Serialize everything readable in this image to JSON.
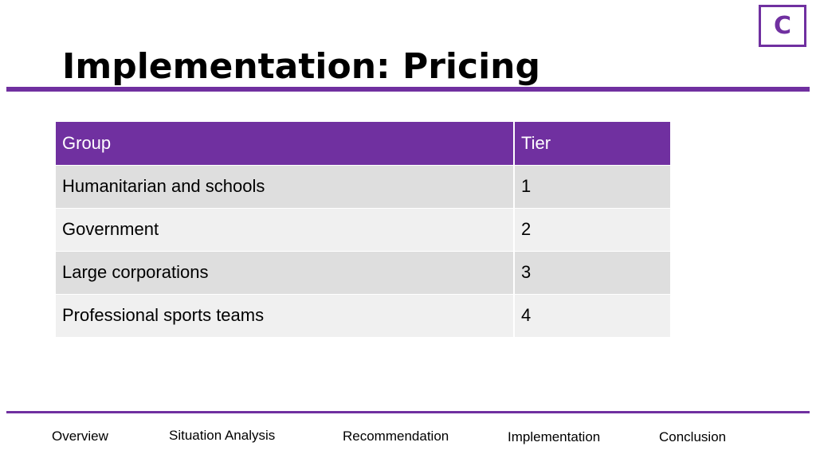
{
  "logo": {
    "letter": "C"
  },
  "slide": {
    "title": "Implementation: Pricing"
  },
  "table": {
    "headers": [
      "Group",
      "Tier"
    ],
    "rows": [
      [
        "Humanitarian and schools",
        "1"
      ],
      [
        "Government",
        "2"
      ],
      [
        "Large corporations",
        "3"
      ],
      [
        "Professional sports teams",
        "4"
      ]
    ]
  },
  "nav": {
    "items": [
      "Overview",
      "Situation Analysis",
      "Recommendation",
      "Implementation",
      "Conclusion"
    ]
  },
  "colors": {
    "accent": "#7030a0",
    "row_odd": "#dedede",
    "row_even": "#f0f0f0"
  }
}
